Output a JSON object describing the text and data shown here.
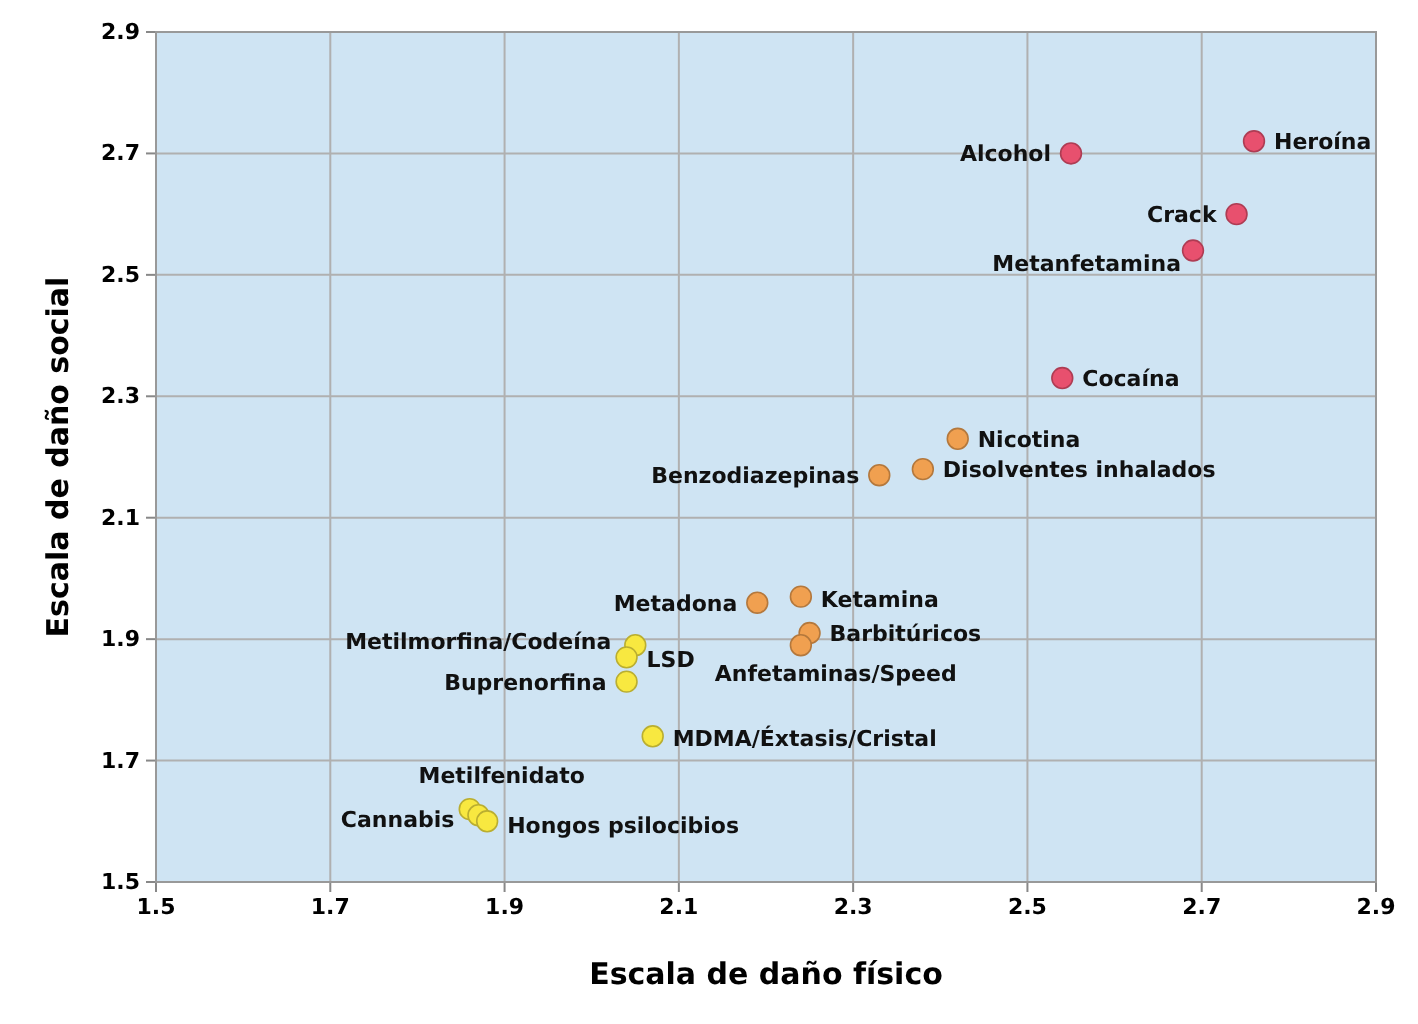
{
  "chart_data": {
    "type": "scatter",
    "xlabel": "Escala de daño físico",
    "ylabel": "Escala de daño social",
    "xlim": [
      1.5,
      2.9
    ],
    "xticks": [
      1.5,
      1.7,
      1.9,
      2.1,
      2.3,
      2.5,
      2.7,
      2.9
    ],
    "ylim": [
      1.5,
      2.9
    ],
    "yticks": [
      1.5,
      1.7,
      1.9,
      2.1,
      2.3,
      2.5,
      2.7,
      2.9
    ],
    "grid": true,
    "marker": "circle",
    "series": [
      {
        "color": "#e8506e",
        "x": [
          2.76,
          2.55,
          2.74,
          2.69,
          2.54
        ],
        "values": [
          2.72,
          2.7,
          2.6,
          2.54,
          2.33
        ]
      },
      {
        "color": "#f0a050",
        "x": [
          2.42,
          2.38,
          2.33,
          2.19,
          2.24,
          2.25,
          2.24
        ],
        "values": [
          2.23,
          2.18,
          2.17,
          1.96,
          1.97,
          1.91,
          1.89
        ]
      },
      {
        "color": "#f8e840",
        "x": [
          2.05,
          2.04,
          2.04,
          2.07,
          1.86,
          1.87,
          1.88
        ],
        "values": [
          1.89,
          1.87,
          1.83,
          1.74,
          1.62,
          1.61,
          1.6
        ]
      }
    ],
    "annotations": [
      {
        "text": "Heroína",
        "x": 2.76,
        "y": 2.72
      },
      {
        "text": "Alcohol",
        "x": 2.55,
        "y": 2.7
      },
      {
        "text": "Crack",
        "x": 2.74,
        "y": 2.6
      },
      {
        "text": "Metanfetamina",
        "x": 2.69,
        "y": 2.54
      },
      {
        "text": "Cocaína",
        "x": 2.54,
        "y": 2.33
      },
      {
        "text": "Nicotina",
        "x": 2.42,
        "y": 2.23
      },
      {
        "text": "Disolventes inhalados",
        "x": 2.38,
        "y": 2.18
      },
      {
        "text": "Benzodiazepinas",
        "x": 2.33,
        "y": 2.17
      },
      {
        "text": "Metadona",
        "x": 2.19,
        "y": 1.96
      },
      {
        "text": "Ketamina",
        "x": 2.24,
        "y": 1.97
      },
      {
        "text": "Barbitúricos",
        "x": 2.25,
        "y": 1.91
      },
      {
        "text": "Anfetaminas/Speed",
        "x": 2.24,
        "y": 1.89
      },
      {
        "text": "Metilmorfina/Codeína",
        "x": 2.05,
        "y": 1.89
      },
      {
        "text": "LSD",
        "x": 2.04,
        "y": 1.87
      },
      {
        "text": "Buprenorfina",
        "x": 2.04,
        "y": 1.83
      },
      {
        "text": "MDMA/Éxtasis/Cristal",
        "x": 2.07,
        "y": 1.74
      },
      {
        "text": "Metilfenidato",
        "x": 1.86,
        "y": 1.62
      },
      {
        "text": "Cannabis",
        "x": 1.87,
        "y": 1.61
      },
      {
        "text": "Hongos psilocibios",
        "x": 1.88,
        "y": 1.6
      }
    ]
  }
}
